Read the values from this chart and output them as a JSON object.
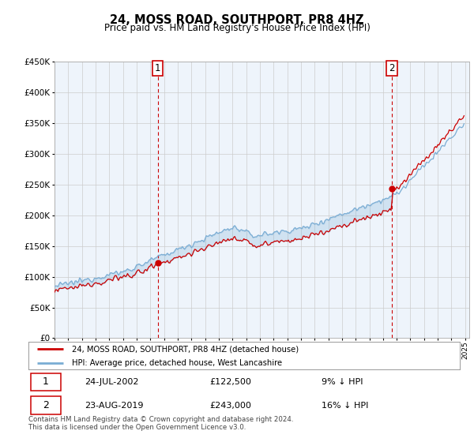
{
  "title": "24, MOSS ROAD, SOUTHPORT, PR8 4HZ",
  "subtitle": "Price paid vs. HM Land Registry's House Price Index (HPI)",
  "ylim": [
    0,
    450000
  ],
  "yticks": [
    0,
    50000,
    100000,
    150000,
    200000,
    250000,
    300000,
    350000,
    400000,
    450000
  ],
  "year_start": 1995,
  "year_end": 2025,
  "sale1_date": "24-JUL-2002",
  "sale1_price": 122500,
  "sale1_year": 2002.54,
  "sale2_date": "23-AUG-2019",
  "sale2_price": 243000,
  "sale2_year": 2019.64,
  "legend_label1": "24, MOSS ROAD, SOUTHPORT, PR8 4HZ (detached house)",
  "legend_label2": "HPI: Average price, detached house, West Lancashire",
  "sale1_pct": "9% ↓ HPI",
  "sale2_pct": "16% ↓ HPI",
  "footer": "Contains HM Land Registry data © Crown copyright and database right 2024.\nThis data is licensed under the Open Government Licence v3.0.",
  "price_color": "#cc0000",
  "hpi_color": "#7aadd4",
  "fill_color": "#ddeeff",
  "background_color": "#ffffff",
  "chart_bg_color": "#eef4fb",
  "grid_color": "#cccccc",
  "annotation_box_color": "#cc0000"
}
